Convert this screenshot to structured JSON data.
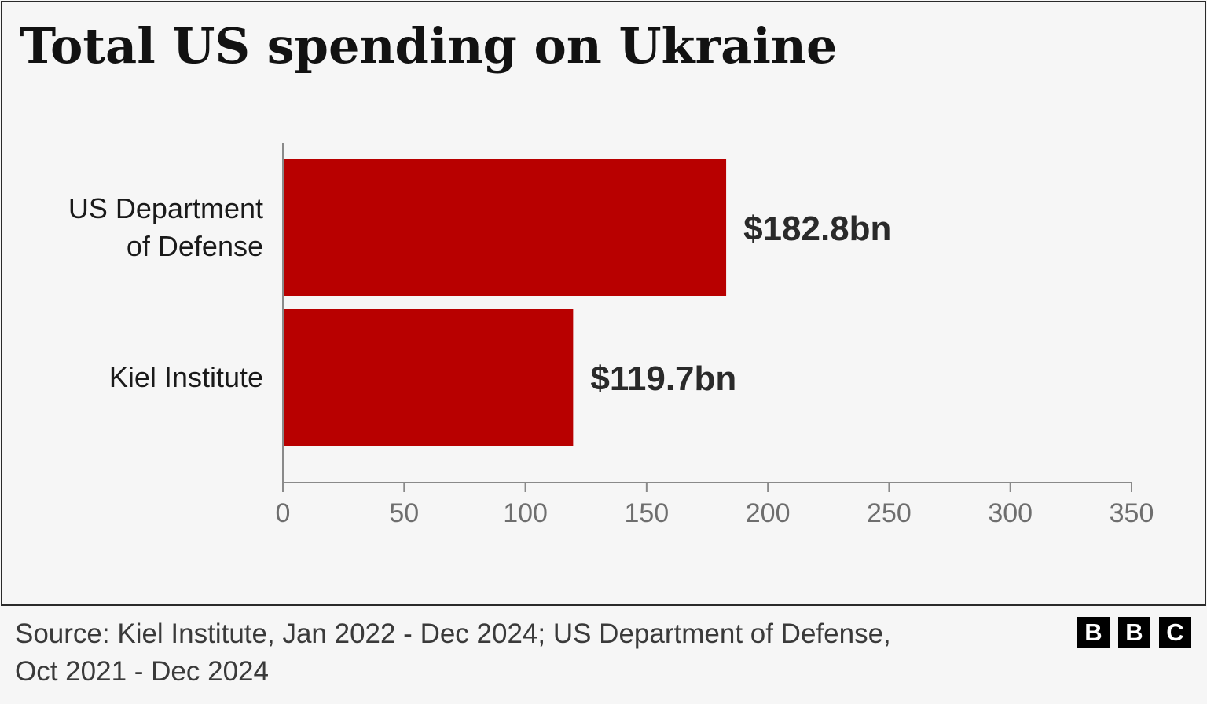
{
  "chart_data": {
    "type": "bar",
    "orientation": "horizontal",
    "title": "Total US spending on Ukraine",
    "categories": [
      [
        "US Department",
        "of Defense"
      ],
      [
        "Kiel Institute"
      ]
    ],
    "values": [
      182.8,
      119.7
    ],
    "value_labels": [
      "$182.8bn",
      "$119.7bn"
    ],
    "xlim": [
      0,
      350
    ],
    "xticks": [
      0,
      50,
      100,
      150,
      200,
      250,
      300,
      350
    ],
    "xlabel": "",
    "ylabel": "",
    "grid": false,
    "bar_color": "#b80000"
  },
  "source": [
    "Source: Kiel Institute, Jan 2022 - Dec 2024; US Department of Defense,",
    "Oct 2021 - Dec 2024"
  ],
  "logo": {
    "icon": "bbc-logo-icon",
    "letters": [
      "B",
      "B",
      "C"
    ]
  }
}
